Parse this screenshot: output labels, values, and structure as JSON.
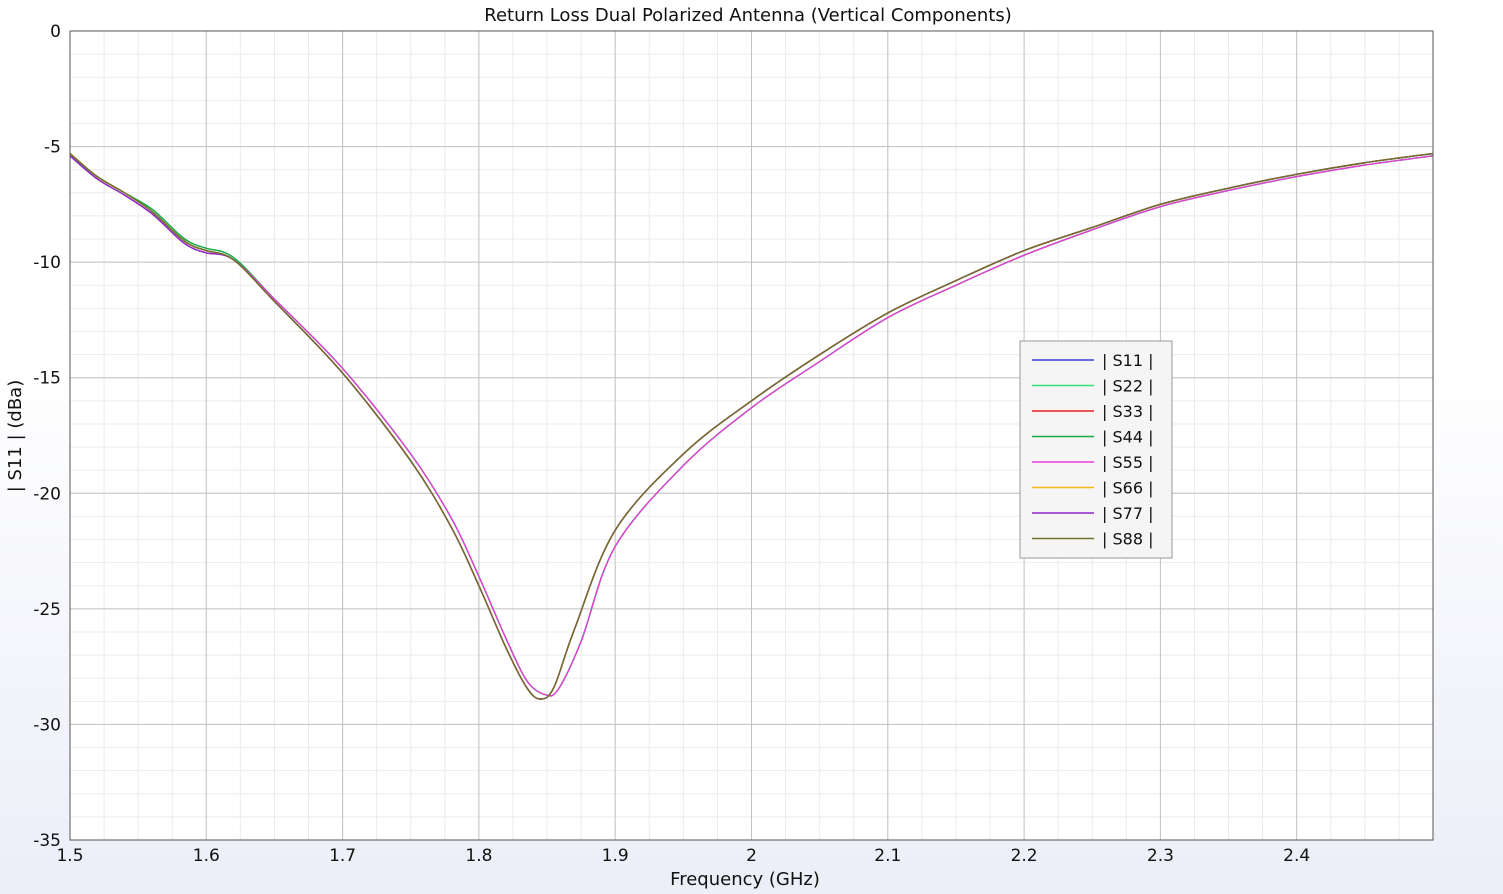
{
  "chart_data": {
    "type": "line",
    "title": "Return Loss Dual Polarized Antenna (Vertical Components)",
    "xlabel": "Frequency (GHz)",
    "ylabel": "| S11 | (dBa)",
    "xlim": [
      1.5,
      2.5
    ],
    "ylim": [
      -35,
      0
    ],
    "xticks": [
      1.5,
      1.6,
      1.7,
      1.8,
      1.9,
      2.0,
      2.1,
      2.2,
      2.3,
      2.4
    ],
    "xtick_labels": [
      "1.5",
      "1.6",
      "1.7",
      "1.8",
      "1.9",
      "2",
      "2.1",
      "2.2",
      "2.3",
      "2.4"
    ],
    "yticks": [
      0,
      -5,
      -10,
      -15,
      -20,
      -25,
      -30,
      -35
    ],
    "ytick_labels": [
      "0",
      "-5",
      "-10",
      "-15",
      "-20",
      "-25",
      "-30",
      "-35"
    ],
    "grid": true,
    "legend_position": "right-center",
    "series": [
      {
        "name": "| S11 |",
        "color": "#3b3bd6",
        "x": [
          1.5,
          1.52,
          1.54,
          1.56,
          1.58,
          1.59,
          1.6,
          1.62,
          1.65,
          1.7,
          1.75,
          1.78,
          1.8,
          1.82,
          1.835,
          1.845,
          1.855,
          1.87,
          1.9,
          1.95,
          2.0,
          2.05,
          2.1,
          2.15,
          2.2,
          2.25,
          2.3,
          2.35,
          2.4,
          2.45,
          2.5
        ],
        "y": [
          -5.3,
          -6.3,
          -7.0,
          -7.8,
          -8.9,
          -9.3,
          -9.5,
          -9.9,
          -11.7,
          -14.8,
          -18.6,
          -21.5,
          -24.0,
          -26.7,
          -28.4,
          -28.9,
          -28.4,
          -25.9,
          -21.6,
          -18.3,
          -16.0,
          -14.0,
          -12.2,
          -10.8,
          -9.5,
          -8.5,
          -7.5,
          -6.8,
          -6.2,
          -5.7,
          -5.3
        ]
      },
      {
        "name": "| S22 |",
        "color": "#33e07a",
        "x": [
          1.5,
          1.52,
          1.54,
          1.56,
          1.58,
          1.59,
          1.6,
          1.62,
          1.65,
          1.7,
          1.75,
          1.78,
          1.8,
          1.82,
          1.835,
          1.848,
          1.858,
          1.875,
          1.9,
          1.95,
          2.0,
          2.05,
          2.1,
          2.15,
          2.2,
          2.25,
          2.3,
          2.35,
          2.4,
          2.45,
          2.5
        ],
        "y": [
          -5.4,
          -6.3,
          -7.0,
          -7.7,
          -8.8,
          -9.2,
          -9.4,
          -9.8,
          -11.6,
          -14.6,
          -18.3,
          -21.1,
          -23.6,
          -26.3,
          -28.1,
          -28.7,
          -28.5,
          -26.4,
          -22.3,
          -18.8,
          -16.3,
          -14.3,
          -12.4,
          -11.0,
          -9.7,
          -8.6,
          -7.6,
          -6.9,
          -6.3,
          -5.8,
          -5.4
        ]
      },
      {
        "name": "| S33 |",
        "color": "#e62020",
        "x": [
          1.5,
          1.52,
          1.54,
          1.56,
          1.58,
          1.59,
          1.6,
          1.62,
          1.65,
          1.7,
          1.75,
          1.78,
          1.8,
          1.82,
          1.835,
          1.845,
          1.855,
          1.87,
          1.9,
          1.95,
          2.0,
          2.05,
          2.1,
          2.15,
          2.2,
          2.25,
          2.3,
          2.35,
          2.4,
          2.45,
          2.5
        ],
        "y": [
          -5.3,
          -6.3,
          -7.0,
          -7.8,
          -8.9,
          -9.3,
          -9.5,
          -9.9,
          -11.7,
          -14.8,
          -18.6,
          -21.5,
          -24.0,
          -26.7,
          -28.4,
          -28.9,
          -28.4,
          -25.9,
          -21.6,
          -18.3,
          -16.0,
          -14.0,
          -12.2,
          -10.8,
          -9.5,
          -8.5,
          -7.5,
          -6.8,
          -6.2,
          -5.7,
          -5.3
        ]
      },
      {
        "name": "| S44 |",
        "color": "#1aa84a",
        "x": [
          1.5,
          1.52,
          1.54,
          1.56,
          1.58,
          1.59,
          1.6,
          1.62,
          1.65,
          1.7,
          1.75,
          1.78,
          1.8,
          1.82,
          1.835,
          1.848,
          1.858,
          1.875,
          1.9,
          1.95,
          2.0,
          2.05,
          2.1,
          2.15,
          2.2,
          2.25,
          2.3,
          2.35,
          2.4,
          2.45,
          2.5
        ],
        "y": [
          -5.4,
          -6.3,
          -7.0,
          -7.7,
          -8.8,
          -9.2,
          -9.4,
          -9.8,
          -11.6,
          -14.6,
          -18.3,
          -21.1,
          -23.6,
          -26.3,
          -28.1,
          -28.7,
          -28.5,
          -26.4,
          -22.3,
          -18.8,
          -16.3,
          -14.3,
          -12.4,
          -11.0,
          -9.7,
          -8.6,
          -7.6,
          -6.9,
          -6.3,
          -5.8,
          -5.4
        ]
      },
      {
        "name": "| S55 |",
        "color": "#e63ed8",
        "x": [
          1.5,
          1.52,
          1.54,
          1.56,
          1.58,
          1.59,
          1.6,
          1.62,
          1.65,
          1.7,
          1.75,
          1.78,
          1.8,
          1.82,
          1.835,
          1.848,
          1.858,
          1.875,
          1.9,
          1.95,
          2.0,
          2.05,
          2.1,
          2.15,
          2.2,
          2.25,
          2.3,
          2.35,
          2.4,
          2.45,
          2.5
        ],
        "y": [
          -5.4,
          -6.4,
          -7.1,
          -7.9,
          -9.0,
          -9.4,
          -9.6,
          -9.9,
          -11.6,
          -14.6,
          -18.3,
          -21.1,
          -23.6,
          -26.3,
          -28.1,
          -28.7,
          -28.5,
          -26.4,
          -22.3,
          -18.8,
          -16.3,
          -14.3,
          -12.4,
          -11.0,
          -9.7,
          -8.6,
          -7.6,
          -6.9,
          -6.3,
          -5.8,
          -5.4
        ]
      },
      {
        "name": "| S66 |",
        "color": "#f0b81e",
        "x": [
          1.5,
          1.52,
          1.54,
          1.56,
          1.58,
          1.59,
          1.6,
          1.62,
          1.65,
          1.7,
          1.75,
          1.78,
          1.8,
          1.82,
          1.835,
          1.845,
          1.855,
          1.87,
          1.9,
          1.95,
          2.0,
          2.05,
          2.1,
          2.15,
          2.2,
          2.25,
          2.3,
          2.35,
          2.4,
          2.45,
          2.5
        ],
        "y": [
          -5.3,
          -6.3,
          -7.0,
          -7.8,
          -8.9,
          -9.3,
          -9.5,
          -9.9,
          -11.7,
          -14.8,
          -18.6,
          -21.5,
          -24.0,
          -26.7,
          -28.4,
          -28.9,
          -28.4,
          -25.9,
          -21.6,
          -18.3,
          -16.0,
          -14.0,
          -12.2,
          -10.8,
          -9.5,
          -8.5,
          -7.5,
          -6.8,
          -6.2,
          -5.7,
          -5.3
        ]
      },
      {
        "name": "| S77 |",
        "color": "#8a28c8",
        "x": [
          1.5,
          1.52,
          1.54,
          1.56,
          1.58,
          1.59,
          1.6,
          1.62,
          1.65,
          1.7,
          1.75,
          1.78,
          1.8,
          1.82,
          1.835,
          1.845,
          1.855,
          1.87,
          1.9,
          1.95,
          2.0,
          2.05,
          2.1,
          2.15,
          2.2,
          2.25,
          2.3,
          2.35,
          2.4,
          2.45,
          2.5
        ],
        "y": [
          -5.4,
          -6.4,
          -7.1,
          -7.9,
          -9.0,
          -9.4,
          -9.6,
          -9.9,
          -11.7,
          -14.8,
          -18.6,
          -21.5,
          -24.0,
          -26.7,
          -28.4,
          -28.9,
          -28.4,
          -25.9,
          -21.6,
          -18.3,
          -16.0,
          -14.0,
          -12.2,
          -10.8,
          -9.5,
          -8.5,
          -7.5,
          -6.8,
          -6.2,
          -5.7,
          -5.3
        ]
      },
      {
        "name": "| S88 |",
        "color": "#707028",
        "x": [
          1.5,
          1.52,
          1.54,
          1.56,
          1.58,
          1.59,
          1.6,
          1.62,
          1.65,
          1.7,
          1.75,
          1.78,
          1.8,
          1.82,
          1.835,
          1.845,
          1.855,
          1.87,
          1.9,
          1.95,
          2.0,
          2.05,
          2.1,
          2.15,
          2.2,
          2.25,
          2.3,
          2.35,
          2.4,
          2.45,
          2.5
        ],
        "y": [
          -5.3,
          -6.3,
          -7.0,
          -7.8,
          -8.9,
          -9.3,
          -9.5,
          -9.9,
          -11.7,
          -14.8,
          -18.6,
          -21.5,
          -24.0,
          -26.7,
          -28.4,
          -28.9,
          -28.4,
          -25.9,
          -21.6,
          -18.3,
          -16.0,
          -14.0,
          -12.2,
          -10.8,
          -9.5,
          -8.5,
          -7.5,
          -6.8,
          -6.2,
          -5.7,
          -5.3
        ]
      }
    ]
  }
}
